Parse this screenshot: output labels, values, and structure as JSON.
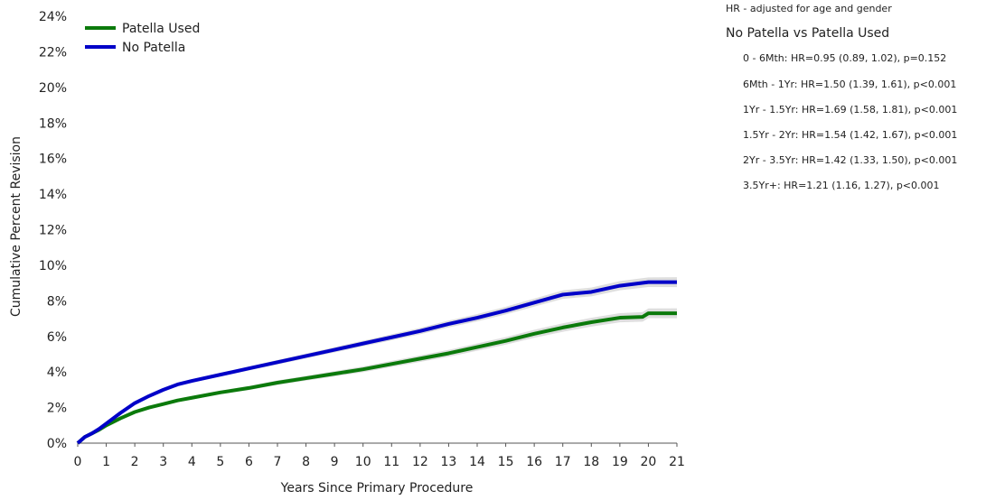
{
  "chart_data": {
    "type": "line",
    "xlabel": "Years Since Primary Procedure",
    "ylabel": "Cumulative Percent Revision",
    "xlim": [
      0,
      21
    ],
    "ylim": [
      0,
      24
    ],
    "x_ticks": [
      0,
      1,
      2,
      3,
      4,
      5,
      6,
      7,
      8,
      9,
      10,
      11,
      12,
      13,
      14,
      15,
      16,
      17,
      18,
      19,
      20,
      21
    ],
    "y_ticks": [
      0,
      2,
      4,
      6,
      8,
      10,
      12,
      14,
      16,
      18,
      20,
      22,
      24
    ],
    "y_tick_labels": [
      "0%",
      "2%",
      "4%",
      "6%",
      "8%",
      "10%",
      "12%",
      "14%",
      "16%",
      "18%",
      "20%",
      "22%",
      "24%"
    ],
    "grid": false,
    "legend_position": "top-left",
    "series": [
      {
        "name": "Patella Used",
        "color": "#0b7a0b",
        "x": [
          0,
          0.25,
          0.5,
          0.75,
          1,
          1.5,
          2,
          2.5,
          3,
          3.5,
          4,
          5,
          6,
          7,
          8,
          9,
          10,
          11,
          12,
          13,
          14,
          15,
          16,
          17,
          18,
          19,
          19.8,
          20,
          21
        ],
        "y": [
          0,
          0.35,
          0.55,
          0.75,
          1.0,
          1.4,
          1.75,
          2.0,
          2.2,
          2.4,
          2.55,
          2.85,
          3.1,
          3.4,
          3.65,
          3.9,
          4.15,
          4.45,
          4.75,
          5.05,
          5.4,
          5.75,
          6.15,
          6.5,
          6.8,
          7.05,
          7.1,
          7.3,
          7.3
        ]
      },
      {
        "name": "No Patella",
        "color": "#0000c8",
        "x": [
          0,
          0.25,
          0.5,
          0.75,
          1,
          1.5,
          2,
          2.5,
          3,
          3.5,
          4,
          5,
          6,
          7,
          8,
          9,
          10,
          11,
          12,
          13,
          14,
          15,
          16,
          17,
          18,
          19,
          19.5,
          20,
          21
        ],
        "y": [
          0,
          0.35,
          0.55,
          0.8,
          1.1,
          1.7,
          2.25,
          2.65,
          3.0,
          3.3,
          3.5,
          3.85,
          4.2,
          4.55,
          4.9,
          5.25,
          5.6,
          5.95,
          6.3,
          6.7,
          7.05,
          7.45,
          7.9,
          8.35,
          8.5,
          8.85,
          8.95,
          9.05,
          9.05
        ]
      }
    ]
  },
  "hr_panel": {
    "note": "HR - adjusted for age and gender",
    "comparison": "No Patella vs Patella Used",
    "rows": [
      "0 - 6Mth: HR=0.95 (0.89, 1.02), p=0.152",
      "6Mth - 1Yr: HR=1.50 (1.39, 1.61), p<0.001",
      "1Yr - 1.5Yr: HR=1.69 (1.58, 1.81), p<0.001",
      "1.5Yr - 2Yr: HR=1.54 (1.42, 1.67), p<0.001",
      "2Yr - 3.5Yr: HR=1.42 (1.33, 1.50), p<0.001",
      "3.5Yr+: HR=1.21 (1.16, 1.27), p<0.001"
    ]
  }
}
